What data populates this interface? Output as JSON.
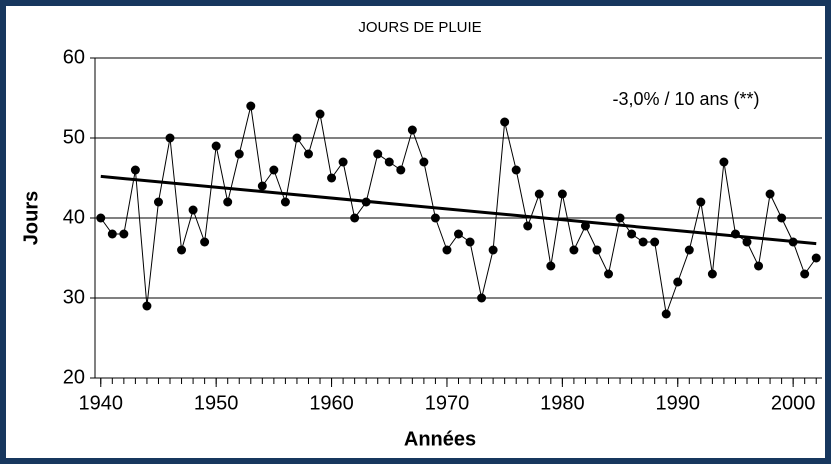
{
  "chart_data": {
    "type": "line",
    "title": "JOURS DE PLUIE",
    "annotation": "-3,0% / 10 ans (**)",
    "x_label": "Années",
    "y_label": "Jours",
    "x": [
      1940,
      1941,
      1942,
      1943,
      1944,
      1945,
      1946,
      1947,
      1948,
      1949,
      1950,
      1951,
      1952,
      1953,
      1954,
      1955,
      1956,
      1957,
      1958,
      1959,
      1960,
      1961,
      1962,
      1963,
      1964,
      1965,
      1966,
      1967,
      1968,
      1969,
      1970,
      1971,
      1972,
      1973,
      1974,
      1975,
      1976,
      1977,
      1978,
      1979,
      1980,
      1981,
      1982,
      1983,
      1984,
      1985,
      1986,
      1987,
      1988,
      1989,
      1990,
      1991,
      1992,
      1993,
      1994,
      1995,
      1996,
      1997,
      1998,
      1999,
      2000,
      2001,
      2002
    ],
    "series": [
      {
        "name": "Jours de pluie",
        "color": "#000000",
        "values": [
          40,
          38,
          38,
          46,
          29,
          42,
          50,
          36,
          41,
          37,
          49,
          42,
          48,
          54,
          44,
          46,
          42,
          50,
          48,
          53,
          45,
          47,
          40,
          42,
          48,
          47,
          46,
          51,
          47,
          40,
          36,
          38,
          37,
          30,
          36,
          52,
          46,
          39,
          43,
          34,
          43,
          36,
          39,
          36,
          33,
          40,
          38,
          37,
          37,
          28,
          32,
          36,
          42,
          33,
          47,
          38,
          37,
          34,
          43,
          40,
          37,
          33,
          35
        ]
      }
    ],
    "trend": {
      "x": [
        1940,
        2002
      ],
      "values": [
        45.2,
        36.8
      ],
      "color": "#000000"
    },
    "xlim": [
      1939.5,
      2002.5
    ],
    "xticks": [
      1940,
      1950,
      1960,
      1970,
      1980,
      1990,
      2000
    ],
    "ylim": [
      20,
      60
    ],
    "yticks": [
      20,
      30,
      40,
      50,
      60
    ],
    "grid": true
  }
}
